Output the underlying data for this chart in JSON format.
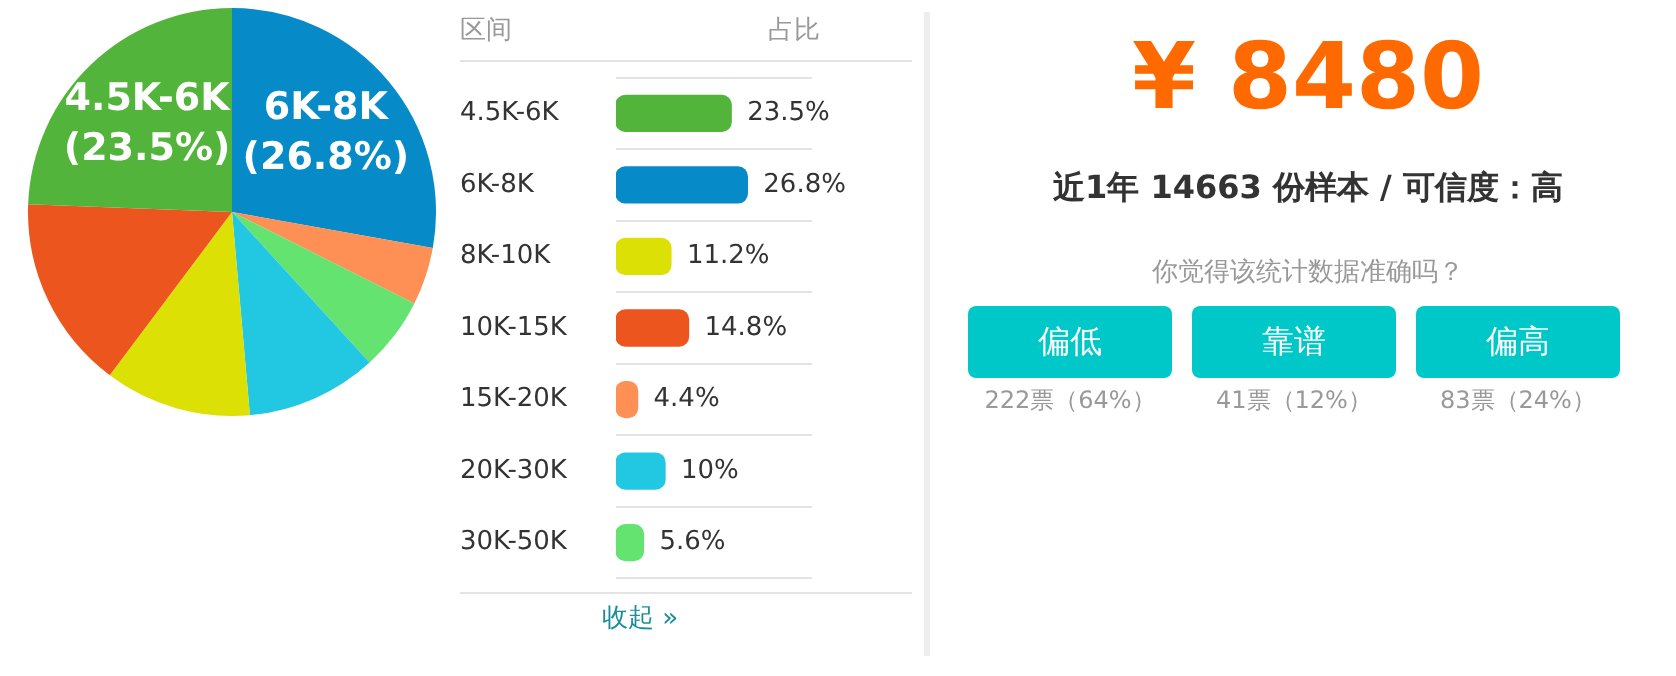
{
  "chart_data": [
    {
      "type": "pie",
      "categories": [
        "6K-8K",
        null,
        null,
        null,
        null,
        null,
        "4.5K-6K"
      ],
      "values": [
        26.8,
        4.4,
        5.6,
        10,
        11.2,
        14.8,
        23.5
      ],
      "colors": [
        "#068bc8",
        "#fe8f55",
        "#64e371",
        "#22c8e2",
        "#dde004",
        "#ec561e",
        "#52b43a"
      ],
      "value_labels": [
        "(26.8%)",
        null,
        null,
        null,
        null,
        null,
        "(23.5%)"
      ],
      "legend": false
    },
    {
      "type": "bar",
      "orientation": "horizontal",
      "ylabel": "区间",
      "xlabel": "占比",
      "categories": [
        "4.5K-6K",
        "6K-8K",
        "8K-10K",
        "10K-15K",
        "15K-20K",
        "20K-30K",
        "30K-50K"
      ],
      "values": [
        23.5,
        26.8,
        11.2,
        14.8,
        4.4,
        10,
        5.6
      ],
      "colors": [
        "#52b43a",
        "#068bc8",
        "#dde004",
        "#ec561e",
        "#fe8f55",
        "#22c8e2",
        "#64e371"
      ],
      "value_labels": [
        "23.5%",
        "26.8%",
        "11.2%",
        "14.8%",
        "4.4%",
        "10%",
        "5.6%"
      ],
      "grid": "y",
      "legend": false,
      "annotations": [
        "收起 »"
      ]
    },
    {
      "type": "other",
      "title": "¥ 8480",
      "subtitle": "近1年 14663 份样本 / 可信度：高",
      "annotations": [
        "你觉得该统计数据准确吗？",
        "偏低",
        "靠谱",
        "偏高",
        "222票（64%）",
        "41票（12%）",
        "83票（24%）"
      ]
    }
  ]
}
